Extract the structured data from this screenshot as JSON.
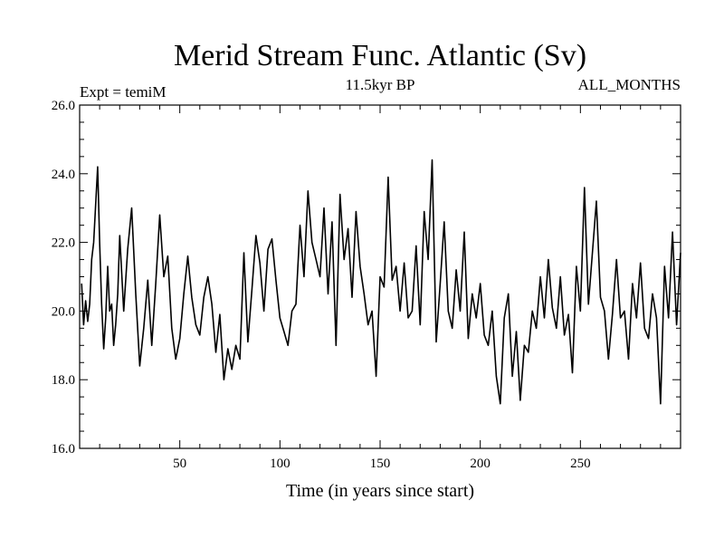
{
  "chart_data": {
    "type": "line",
    "title": "Merid Stream Func. Atlantic (Sv)",
    "subtitle_left": "Expt = temiM",
    "subtitle_center": "11.5kyr BP",
    "subtitle_right": "ALL_MONTHS",
    "xlabel": "Time (in years since start)",
    "ylabel": "",
    "xlim": [
      0,
      300
    ],
    "ylim": [
      16.0,
      26.0
    ],
    "xticks": [
      {
        "value": 50,
        "label": "50"
      },
      {
        "value": 100,
        "label": "100"
      },
      {
        "value": 150,
        "label": "150"
      },
      {
        "value": 200,
        "label": "200"
      },
      {
        "value": 250,
        "label": "250"
      }
    ],
    "yticks": [
      {
        "value": 16.0,
        "label": "16.0"
      },
      {
        "value": 18.0,
        "label": "18.0"
      },
      {
        "value": 20.0,
        "label": "20.0"
      },
      {
        "value": 22.0,
        "label": "22.0"
      },
      {
        "value": 24.0,
        "label": "24.0"
      },
      {
        "value": 26.0,
        "label": "26.0"
      }
    ],
    "grid": false,
    "line_color": "#000000",
    "series": [
      {
        "name": "Merid Stream Func. Atlantic",
        "x": [
          1,
          2,
          3,
          4,
          5,
          6,
          7,
          8,
          9,
          10,
          11,
          12,
          13,
          14,
          15,
          16,
          17,
          18,
          19,
          20,
          22,
          24,
          26,
          28,
          30,
          32,
          34,
          36,
          38,
          40,
          42,
          44,
          46,
          48,
          50,
          52,
          54,
          56,
          58,
          60,
          62,
          64,
          66,
          68,
          70,
          72,
          74,
          76,
          78,
          80,
          82,
          84,
          86,
          88,
          90,
          92,
          94,
          96,
          98,
          100,
          102,
          104,
          106,
          108,
          110,
          112,
          114,
          116,
          118,
          120,
          122,
          124,
          126,
          128,
          130,
          132,
          134,
          136,
          138,
          140,
          142,
          144,
          146,
          148,
          150,
          152,
          154,
          156,
          158,
          160,
          162,
          164,
          166,
          168,
          170,
          172,
          174,
          176,
          178,
          180,
          182,
          184,
          186,
          188,
          190,
          192,
          194,
          196,
          198,
          200,
          202,
          204,
          206,
          208,
          210,
          212,
          214,
          216,
          218,
          220,
          222,
          224,
          226,
          228,
          230,
          232,
          234,
          236,
          238,
          240,
          242,
          244,
          246,
          248,
          250,
          252,
          254,
          256,
          258,
          260,
          262,
          264,
          266,
          268,
          270,
          272,
          274,
          276,
          278,
          280,
          282,
          284,
          286,
          288,
          290,
          292,
          294,
          296,
          298,
          300
        ],
        "values": [
          20.8,
          19.6,
          20.3,
          19.7,
          20.2,
          21.5,
          22.0,
          23.1,
          24.2,
          22.0,
          20.2,
          18.9,
          19.8,
          21.3,
          20.0,
          20.2,
          19.0,
          19.6,
          20.5,
          22.2,
          20.0,
          21.8,
          23.0,
          20.5,
          18.4,
          19.5,
          20.9,
          19.0,
          20.8,
          22.8,
          21.0,
          21.6,
          19.5,
          18.6,
          19.2,
          20.5,
          21.6,
          20.4,
          19.6,
          19.3,
          20.4,
          21.0,
          20.2,
          18.8,
          19.9,
          18.0,
          18.9,
          18.3,
          19.0,
          18.6,
          21.7,
          19.1,
          20.6,
          22.2,
          21.4,
          20.0,
          21.8,
          22.1,
          20.9,
          19.8,
          19.4,
          19.0,
          20.0,
          20.2,
          22.5,
          21.0,
          23.5,
          22.0,
          21.5,
          21.0,
          23.0,
          20.5,
          22.6,
          19.0,
          23.4,
          21.5,
          22.4,
          20.4,
          22.9,
          21.3,
          20.5,
          19.6,
          20.0,
          18.1,
          21.0,
          20.7,
          23.9,
          20.9,
          21.3,
          20.0,
          21.4,
          19.8,
          20.0,
          21.9,
          19.6,
          22.9,
          21.5,
          24.4,
          19.1,
          20.8,
          22.6,
          20.0,
          19.5,
          21.2,
          20.0,
          22.3,
          19.2,
          20.5,
          19.8,
          20.8,
          19.3,
          19.0,
          20.0,
          18.1,
          17.3,
          19.8,
          20.5,
          18.1,
          19.4,
          17.4,
          19.0,
          18.8,
          20.0,
          19.5,
          21.0,
          19.8,
          21.5,
          20.1,
          19.5,
          21.0,
          19.3,
          19.9,
          18.2,
          21.3,
          20.0,
          23.6,
          20.2,
          21.7,
          23.2,
          20.4,
          20.0,
          18.6,
          19.9,
          21.5,
          19.8,
          20.0,
          18.6,
          20.8,
          19.8,
          21.4,
          19.5,
          19.2,
          20.5,
          19.8,
          17.3,
          21.3,
          19.8,
          22.3,
          19.6,
          21.7
        ]
      }
    ]
  }
}
